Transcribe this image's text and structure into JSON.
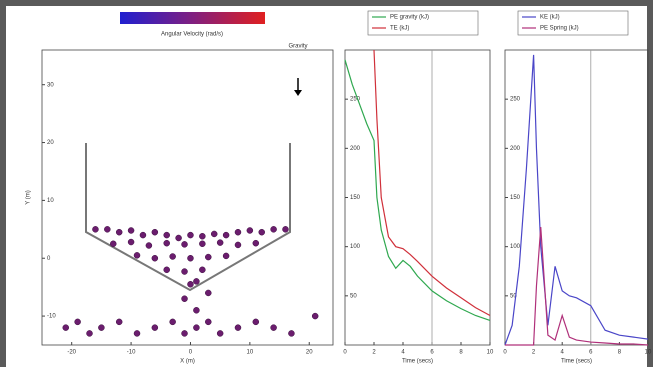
{
  "chart_data": [
    {
      "type": "scatter",
      "title": "Gravity",
      "xlabel": "X (m)",
      "ylabel": "Y (m)",
      "colorbar_label": "Angular Velocity (rad/s)",
      "color": "#6b1d6e",
      "x": [
        -16,
        -14,
        -12,
        -10,
        -8,
        -6,
        -4,
        -2,
        0,
        2,
        4,
        6,
        8,
        10,
        12,
        14,
        16,
        -13,
        -10,
        -7,
        -4,
        -1,
        2,
        5,
        8,
        11,
        -9,
        -6,
        -3,
        0,
        3,
        6,
        -4,
        -1,
        2,
        0,
        1,
        3,
        -1,
        1,
        -21,
        -19,
        -17,
        -15,
        -12,
        -9,
        -6,
        -3,
        -1,
        1,
        3,
        5,
        8,
        11,
        14,
        17,
        21
      ],
      "y": [
        5,
        5,
        4.5,
        4.8,
        4,
        4.5,
        4,
        3.5,
        4,
        3.8,
        4.2,
        4,
        4.5,
        4.8,
        4.5,
        5,
        5,
        2.5,
        2.8,
        2.2,
        2.6,
        2.4,
        2.5,
        2.7,
        2.3,
        2.6,
        0.5,
        0,
        0.3,
        0,
        0.2,
        0.4,
        -2,
        -2.3,
        -2,
        -4.5,
        -4,
        -6,
        -7,
        -9,
        -12,
        -11,
        -13,
        -12,
        -11,
        -13,
        -12,
        -11,
        -13,
        -12,
        -11,
        -13,
        -12,
        -11,
        -12,
        -13,
        -10
      ],
      "xlim": [
        -25,
        24
      ],
      "ylim": [
        -15,
        36
      ],
      "xticks": [
        -20,
        -10,
        0,
        10,
        20
      ],
      "yticks": [
        -10,
        0,
        10,
        20,
        30
      ]
    },
    {
      "type": "line",
      "xlabel": "Time (secs)",
      "vline": 6,
      "x": [
        0,
        0.5,
        1,
        1.5,
        2,
        2.2,
        2.5,
        3,
        3.5,
        4,
        4.5,
        5,
        6,
        7,
        8,
        9,
        10
      ],
      "series": [
        {
          "name": "PE gravity (kJ)",
          "color": "#2fa84f",
          "values": [
            290,
            265,
            245,
            225,
            208,
            150,
            117,
            90,
            78,
            86,
            80,
            70,
            55,
            45,
            37,
            30,
            25
          ]
        },
        {
          "name": "TE (kJ)",
          "color": "#d0303a",
          "values": [
            null,
            null,
            null,
            null,
            300,
            230,
            150,
            110,
            100,
            98,
            92,
            85,
            70,
            58,
            48,
            38,
            30
          ]
        }
      ],
      "xlim": [
        0,
        10
      ],
      "ylim": [
        0,
        300
      ],
      "xticks": [
        0,
        2,
        4,
        6,
        8,
        10
      ],
      "yticks": [
        50,
        100,
        150,
        200,
        250
      ]
    },
    {
      "type": "line",
      "xlabel": "Time (secs)",
      "vline": 6,
      "x": [
        0,
        0.5,
        1,
        1.5,
        2,
        2.2,
        2.5,
        3,
        3.5,
        4,
        4.5,
        5,
        6,
        7,
        8,
        9,
        10
      ],
      "series": [
        {
          "name": "KE (kJ)",
          "color": "#4a46c8",
          "values": [
            0,
            20,
            80,
            180,
            295,
            200,
            100,
            20,
            80,
            55,
            50,
            48,
            40,
            15,
            10,
            8,
            6
          ]
        },
        {
          "name": "PE Spring (kJ)",
          "color": "#b0307a",
          "values": [
            0,
            0,
            0,
            0,
            0,
            60,
            120,
            10,
            5,
            30,
            8,
            5,
            3,
            2,
            1,
            1,
            0
          ]
        }
      ],
      "xlim": [
        0,
        10
      ],
      "ylim": [
        0,
        300
      ],
      "xticks": [
        0,
        2,
        4,
        6,
        8,
        10
      ],
      "yticks": [
        50,
        100,
        150,
        200,
        250
      ]
    }
  ]
}
